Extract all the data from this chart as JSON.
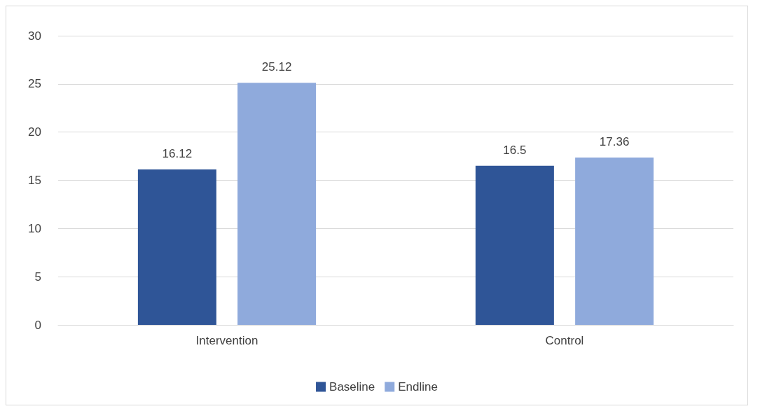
{
  "chart_data": {
    "type": "bar",
    "categories": [
      "Intervention",
      "Control"
    ],
    "series": [
      {
        "name": "Baseline",
        "color": "#2f5597",
        "values": [
          16.12,
          16.5
        ]
      },
      {
        "name": "Endline",
        "color": "#8faadc",
        "values": [
          25.12,
          17.36
        ]
      }
    ],
    "ylim": [
      0,
      30
    ],
    "yticks": [
      0,
      5,
      10,
      15,
      20,
      25,
      30
    ],
    "grid": "y",
    "legend": "bottom",
    "data_labels": true
  }
}
